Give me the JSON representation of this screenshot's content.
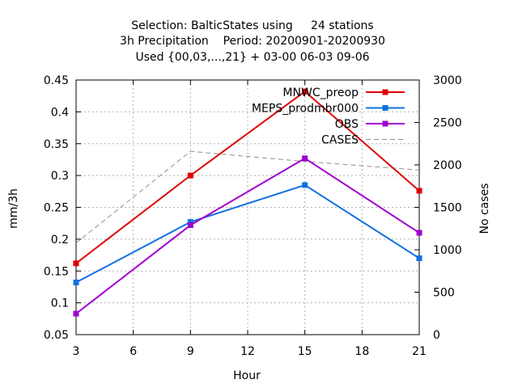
{
  "chart_data": {
    "type": "line",
    "title_lines": [
      "Selection: BalticStates using     24 stations",
      "3h Precipitation    Period: 20200901-20200930",
      "Used {00,03,...,21} + 03-00 06-03 09-06"
    ],
    "xlabel": "Hour",
    "ylabel": "mm/3h",
    "y2label": "No cases",
    "xlim": [
      3,
      21
    ],
    "ylim": [
      0.05,
      0.45
    ],
    "y2lim": [
      0,
      3000
    ],
    "x_ticks": [
      3,
      6,
      9,
      12,
      15,
      18,
      21
    ],
    "y_ticks": [
      "0.05",
      "0.1",
      "0.15",
      "0.2",
      "0.25",
      "0.3",
      "0.35",
      "0.4",
      "0.45"
    ],
    "y2_ticks": [
      "0",
      "500",
      "1000",
      "1500",
      "2000",
      "2500",
      "3000"
    ],
    "grid": true,
    "legend_position": "top-right",
    "x": [
      3,
      9,
      15,
      21
    ],
    "series": [
      {
        "name": "MNWC_preop",
        "color": "#e00000",
        "axis": "y",
        "values": [
          0.162,
          0.3,
          0.432,
          0.276
        ],
        "markers": true
      },
      {
        "name": "MEPS_prodmbr000",
        "color": "#1070e0",
        "axis": "y",
        "values": [
          0.132,
          0.227,
          0.285,
          0.17
        ],
        "markers": true
      },
      {
        "name": "OBS",
        "color": "#a000d0",
        "axis": "y",
        "values": [
          0.083,
          0.222,
          0.327,
          0.21
        ],
        "markers": true
      },
      {
        "name": "CASES",
        "color": "#909090",
        "axis": "y2",
        "dashed": true,
        "values": [
          1080,
          2160,
          2040,
          1940
        ],
        "markers": false
      }
    ]
  }
}
